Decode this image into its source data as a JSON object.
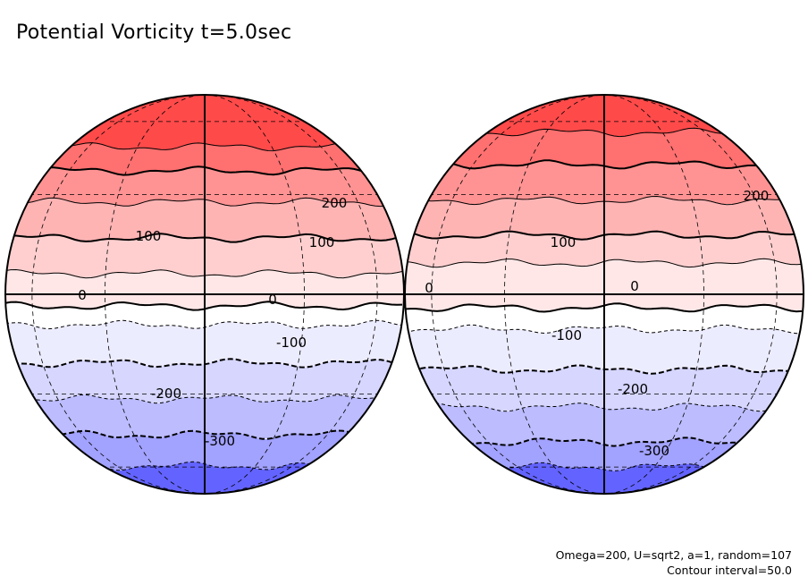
{
  "title": "Potential Vorticity t=5.0sec",
  "footer": {
    "params": "Omega=200, U=sqrt2, a=1, random=107",
    "contour_interval": "Contour interval=50.0"
  },
  "chart_data": {
    "type": "heatmap",
    "projection": "orthographic (two hemispheres)",
    "title": "Potential Vorticity t=5.0sec",
    "variable": "potential vorticity",
    "time": "t=5.0sec",
    "contour_interval": 50.0,
    "colormap": {
      "positive": "#ff3b3b",
      "zero": "#ffffff",
      "negative": "#3b3bff"
    },
    "bands": [
      {
        "range": [
          300,
          400
        ],
        "color": "#ff4a4a"
      },
      {
        "range": [
          250,
          300
        ],
        "color": "#ff7070"
      },
      {
        "range": [
          200,
          250
        ],
        "color": "#ff9393"
      },
      {
        "range": [
          150,
          200
        ],
        "color": "#ffb4b4"
      },
      {
        "range": [
          100,
          150
        ],
        "color": "#ffcfcf"
      },
      {
        "range": [
          50,
          100
        ],
        "color": "#ffe7e7"
      },
      {
        "range": [
          0,
          50
        ],
        "color": "#ffffff"
      },
      {
        "range": [
          -50,
          0
        ],
        "color": "#ffffff"
      },
      {
        "range": [
          -100,
          -50
        ],
        "color": "#ececff"
      },
      {
        "range": [
          -150,
          -100
        ],
        "color": "#d6d6ff"
      },
      {
        "range": [
          -200,
          -150
        ],
        "color": "#bcbcff"
      },
      {
        "range": [
          -250,
          -200
        ],
        "color": "#a2a2ff"
      },
      {
        "range": [
          -300,
          -250
        ],
        "color": "#8585ff"
      },
      {
        "range": [
          -350,
          -300
        ],
        "color": "#6363ff"
      },
      {
        "range": [
          -400,
          -350
        ],
        "color": "#4343ff"
      }
    ],
    "contour_labels": [
      {
        "globe": 0,
        "text": "200"
      },
      {
        "globe": 0,
        "text": "100"
      },
      {
        "globe": 0,
        "text": "100"
      },
      {
        "globe": 0,
        "text": "0"
      },
      {
        "globe": 0,
        "text": "0"
      },
      {
        "globe": 0,
        "text": "-100"
      },
      {
        "globe": 0,
        "text": "-200"
      },
      {
        "globe": 0,
        "text": "-300"
      },
      {
        "globe": 1,
        "text": "200"
      },
      {
        "globe": 1,
        "text": "100"
      },
      {
        "globe": 1,
        "text": "0"
      },
      {
        "globe": 1,
        "text": "0"
      },
      {
        "globe": 1,
        "text": "-100"
      },
      {
        "globe": 1,
        "text": "-200"
      },
      {
        "globe": 1,
        "text": "-300"
      }
    ]
  }
}
